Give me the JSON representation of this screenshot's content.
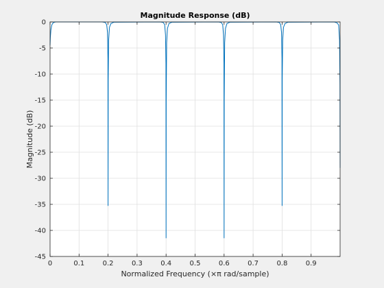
{
  "chart_data": {
    "type": "line",
    "title": "Magnitude Response (dB)",
    "xlabel": "Normalized Frequency (×π rad/sample)",
    "ylabel": "Magnitude (dB)",
    "xlim": [
      0,
      1
    ],
    "ylim": [
      -45,
      0
    ],
    "x_ticks": [
      0,
      0.1,
      0.2,
      0.3,
      0.4,
      0.5,
      0.6,
      0.7,
      0.8,
      0.9
    ],
    "x_tick_labels": [
      "0",
      "0.1",
      "0.2",
      "0.3",
      "0.4",
      "0.5",
      "0.6",
      "0.7",
      "0.8",
      "0.9"
    ],
    "y_ticks": [
      0,
      -5,
      -10,
      -15,
      -20,
      -25,
      -30,
      -35,
      -40,
      -45
    ],
    "y_tick_labels": [
      "0",
      "-5",
      "-10",
      "-15",
      "-20",
      "-25",
      "-30",
      "-35",
      "-40",
      "-45"
    ],
    "grid": true,
    "line_color": "#0072bd",
    "series": [
      {
        "x": [
          0,
          0.001,
          0.003,
          0.006,
          0.01,
          0.015,
          0.02,
          0.18,
          0.19,
          0.195,
          0.198,
          0.1995,
          0.2,
          0.2005,
          0.202,
          0.205,
          0.21,
          0.22,
          0.38,
          0.39,
          0.395,
          0.398,
          0.3995,
          0.4,
          0.4005,
          0.402,
          0.405,
          0.41,
          0.42,
          0.58,
          0.59,
          0.595,
          0.598,
          0.5995,
          0.6,
          0.6005,
          0.602,
          0.605,
          0.61,
          0.62,
          0.78,
          0.79,
          0.795,
          0.798,
          0.7995,
          0.8,
          0.8005,
          0.802,
          0.805,
          0.81,
          0.82,
          0.98,
          0.99,
          0.995,
          0.998,
          0.9995,
          1.0
        ],
        "y": [
          -4.5,
          -3.0,
          -1.5,
          -0.6,
          -0.2,
          -0.05,
          0,
          0,
          -0.1,
          -0.5,
          -2.0,
          -7,
          -35.3,
          -11,
          -3.5,
          -1.0,
          -0.3,
          -0.05,
          0,
          -0.1,
          -0.5,
          -2.5,
          -8,
          -41.5,
          -15,
          -4.0,
          -1.2,
          -0.3,
          -0.05,
          0,
          -0.1,
          -0.5,
          -2.5,
          -8,
          -41.5,
          -15,
          -4.0,
          -1.2,
          -0.3,
          -0.05,
          0,
          -0.1,
          -0.5,
          -2.0,
          -7,
          -35.3,
          -11,
          -3.5,
          -1.0,
          -0.3,
          -0.05,
          0,
          -0.2,
          -0.6,
          -3.5,
          -12,
          -28
        ]
      }
    ]
  }
}
